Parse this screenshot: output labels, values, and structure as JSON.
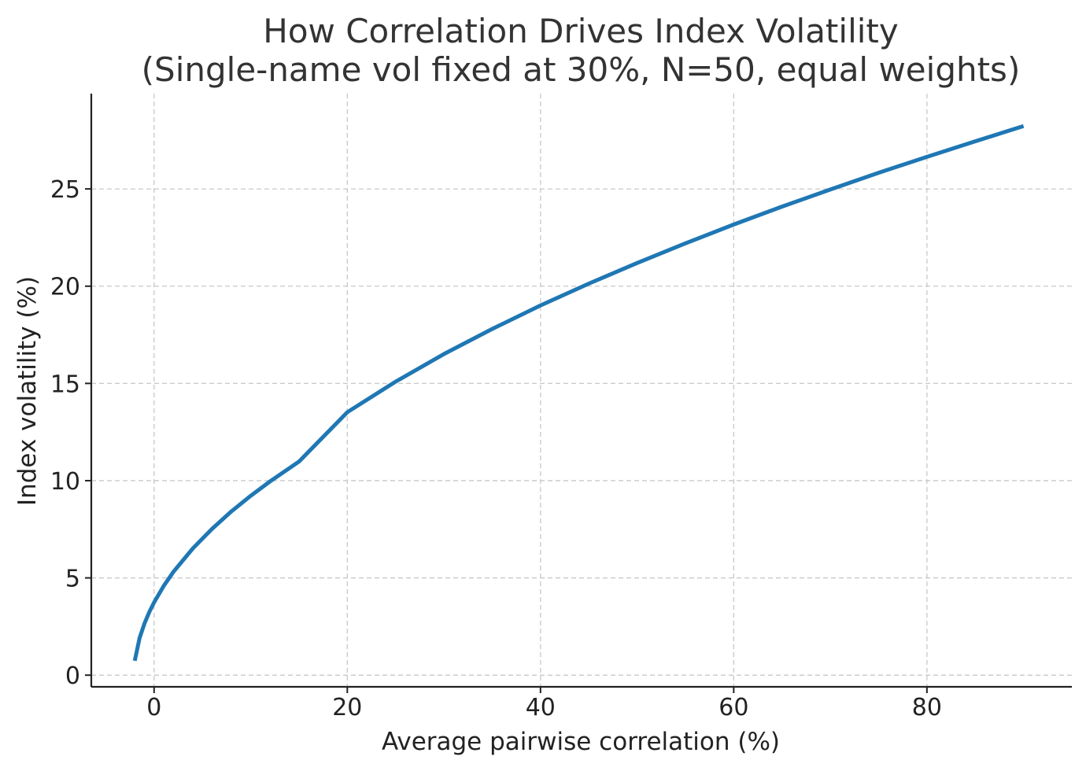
{
  "chart_data": {
    "type": "line",
    "title": "How Correlation Drives Index Volatility",
    "subtitle": "(Single-name vol fixed at 30%, N=50, equal weights)",
    "xlabel": "Average pairwise correlation (%)",
    "ylabel": "Index volatility (%)",
    "xlim": [
      -6.5,
      95
    ],
    "ylim": [
      -0.6,
      29.9
    ],
    "xticks": [
      0,
      20,
      40,
      60,
      80
    ],
    "yticks": [
      0,
      5,
      10,
      15,
      20,
      25
    ],
    "grid": true,
    "series": [
      {
        "name": "Index volatility",
        "color": "#1f77b4",
        "x": [
          -2,
          -1.5,
          -1,
          -0.5,
          0,
          1,
          2,
          4,
          6,
          8,
          10,
          12,
          15,
          20,
          25,
          30,
          35,
          40,
          45,
          50,
          55,
          60,
          65,
          70,
          75,
          80,
          85,
          90
        ],
        "y": [
          0.74,
          1.91,
          2.65,
          3.24,
          3.74,
          4.59,
          5.31,
          6.51,
          7.52,
          8.42,
          9.22,
          9.96,
          10.98,
          13.52,
          15.09,
          16.51,
          17.8,
          19.01,
          20.13,
          21.19,
          22.2,
          23.17,
          24.09,
          24.97,
          25.83,
          26.65,
          27.45,
          28.23
        ]
      }
    ]
  }
}
